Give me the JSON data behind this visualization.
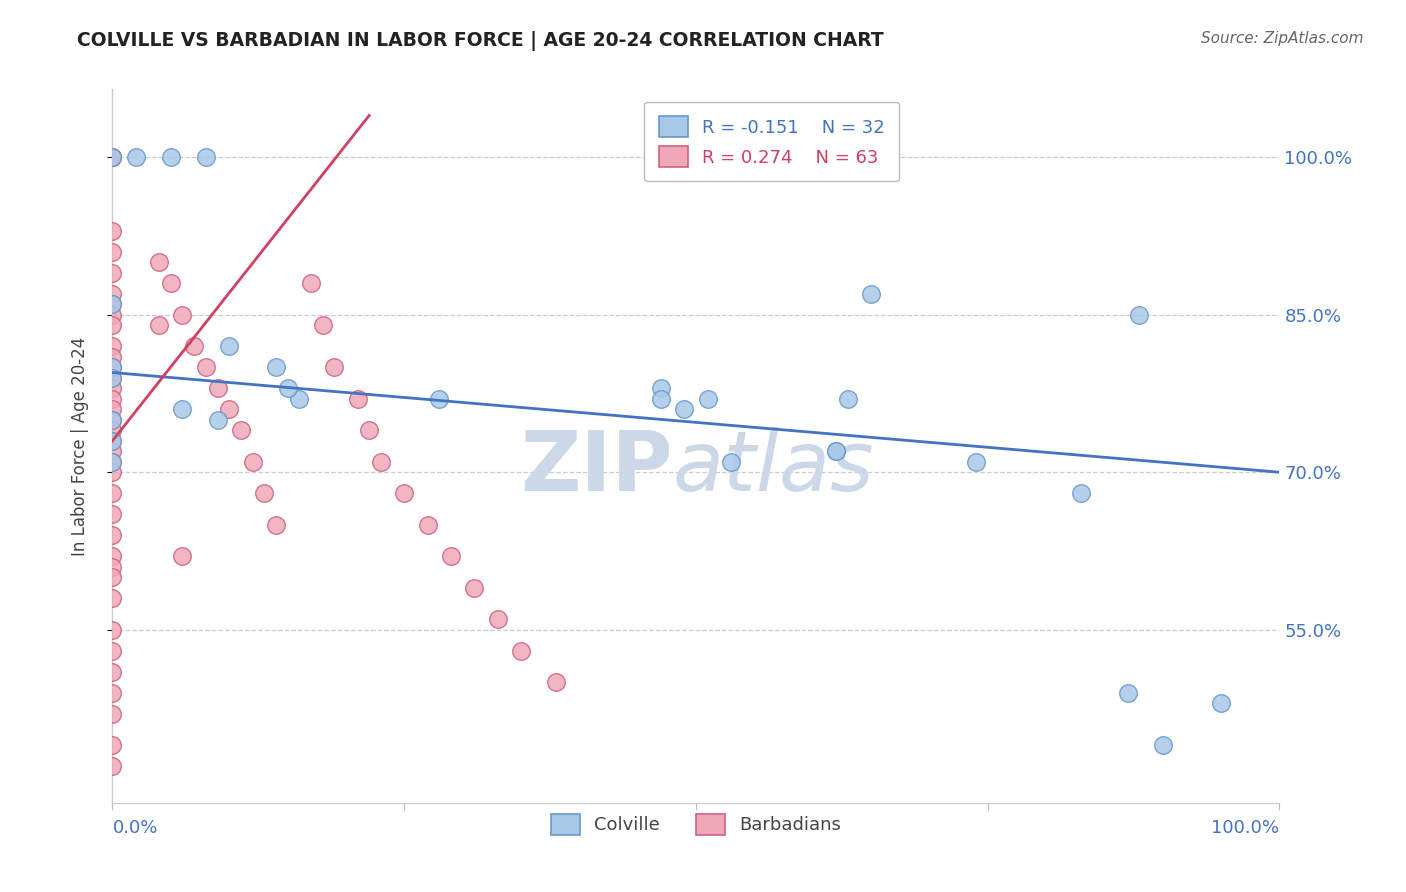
{
  "title": "COLVILLE VS BARBADIAN IN LABOR FORCE | AGE 20-24 CORRELATION CHART",
  "source": "Source: ZipAtlas.com",
  "ylabel": "In Labor Force | Age 20-24",
  "ytick_labels": [
    "100.0%",
    "85.0%",
    "70.0%",
    "55.0%"
  ],
  "ytick_values": [
    1.0,
    0.85,
    0.7,
    0.55
  ],
  "xmin": 0.0,
  "xmax": 1.0,
  "ymin": 0.385,
  "ymax": 1.065,
  "colville_color": "#a8c8e8",
  "barbadian_color": "#f0a8b8",
  "colville_edge": "#6898c8",
  "barbadian_edge": "#d06080",
  "blue_line_color": "#4472c4",
  "pink_line_color": "#d04060",
  "legend_R_blue": "R = -0.151",
  "legend_N_blue": "N = 32",
  "legend_R_pink": "R = 0.274",
  "legend_N_pink": "N = 63",
  "colville_x": [
    0.0,
    0.02,
    0.05,
    0.08,
    0.0,
    0.0,
    0.0,
    0.1,
    0.16,
    0.28,
    0.47,
    0.49,
    0.51,
    0.53,
    0.62,
    0.63,
    0.65,
    0.74,
    0.83,
    0.88,
    0.95,
    0.0,
    0.0,
    0.0,
    0.06,
    0.09,
    0.14,
    0.15,
    0.47,
    0.62,
    0.87,
    0.9
  ],
  "colville_y": [
    1.0,
    1.0,
    1.0,
    1.0,
    0.86,
    0.8,
    0.79,
    0.82,
    0.77,
    0.77,
    0.78,
    0.76,
    0.77,
    0.71,
    0.72,
    0.77,
    0.87,
    0.71,
    0.68,
    0.85,
    0.48,
    0.75,
    0.73,
    0.71,
    0.76,
    0.75,
    0.8,
    0.78,
    0.77,
    0.72,
    0.49,
    0.44
  ],
  "barbadian_x": [
    0.0,
    0.0,
    0.0,
    0.0,
    0.0,
    0.0,
    0.0,
    0.0,
    0.0,
    0.0,
    0.0,
    0.0,
    0.0,
    0.0,
    0.0,
    0.0,
    0.0,
    0.0,
    0.0,
    0.0,
    0.0,
    0.0,
    0.0,
    0.0,
    0.0,
    0.0,
    0.0,
    0.0,
    0.0,
    0.0,
    0.0,
    0.0,
    0.0,
    0.0,
    0.0,
    0.0,
    0.0,
    0.04,
    0.05,
    0.06,
    0.07,
    0.08,
    0.09,
    0.1,
    0.11,
    0.12,
    0.13,
    0.14,
    0.17,
    0.18,
    0.19,
    0.21,
    0.22,
    0.23,
    0.25,
    0.27,
    0.29,
    0.31,
    0.33,
    0.35,
    0.38,
    0.04,
    0.06
  ],
  "barbadian_y": [
    1.0,
    1.0,
    1.0,
    0.93,
    0.91,
    0.89,
    0.87,
    0.86,
    0.85,
    0.84,
    0.82,
    0.81,
    0.8,
    0.79,
    0.78,
    0.77,
    0.76,
    0.75,
    0.74,
    0.73,
    0.72,
    0.71,
    0.7,
    0.68,
    0.66,
    0.64,
    0.62,
    0.61,
    0.6,
    0.58,
    0.55,
    0.53,
    0.51,
    0.49,
    0.47,
    0.44,
    0.42,
    0.9,
    0.88,
    0.85,
    0.82,
    0.8,
    0.78,
    0.76,
    0.74,
    0.71,
    0.68,
    0.65,
    0.88,
    0.84,
    0.8,
    0.77,
    0.74,
    0.71,
    0.68,
    0.65,
    0.62,
    0.59,
    0.56,
    0.53,
    0.5,
    0.84,
    0.62
  ],
  "blue_line_x": [
    0.0,
    1.0
  ],
  "blue_line_y": [
    0.795,
    0.7
  ],
  "pink_line_x": [
    0.0,
    0.22
  ],
  "pink_line_y": [
    0.73,
    1.04
  ],
  "watermark_top": "ZIP",
  "watermark_bottom": "atlas",
  "watermark_color": "#ccd8e8",
  "figsize": [
    14.06,
    8.92
  ],
  "dpi": 100
}
